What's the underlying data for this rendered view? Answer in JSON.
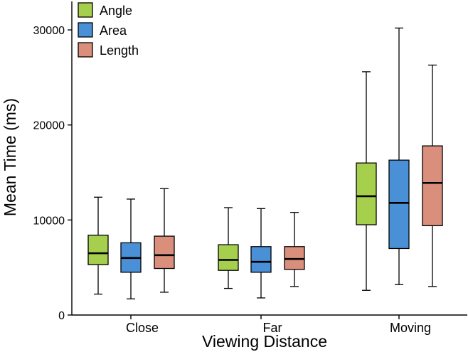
{
  "chart_data": {
    "type": "boxplot",
    "title": "",
    "xlabel": "Viewing Distance",
    "ylabel": "Mean Time (ms)",
    "ylim": [
      0,
      33000
    ],
    "yticks": [
      0,
      10000,
      20000,
      30000
    ],
    "ytick_labels": [
      "0",
      "10000",
      "20000",
      "30000"
    ],
    "categories": [
      "Close",
      "Far",
      "Moving"
    ],
    "legend_position": "top-left",
    "series": [
      {
        "name": "Angle",
        "color": "#a5cf4c",
        "boxes": [
          {
            "whisker_low": 2200,
            "q1": 5300,
            "median": 6500,
            "q3": 8400,
            "whisker_high": 12400
          },
          {
            "whisker_low": 2800,
            "q1": 4700,
            "median": 5800,
            "q3": 7400,
            "whisker_high": 11300
          },
          {
            "whisker_low": 2600,
            "q1": 9500,
            "median": 12500,
            "q3": 16000,
            "whisker_high": 25600
          }
        ]
      },
      {
        "name": "Area",
        "color": "#4a90d6",
        "boxes": [
          {
            "whisker_low": 1700,
            "q1": 4500,
            "median": 6000,
            "q3": 7600,
            "whisker_high": 12200
          },
          {
            "whisker_low": 1800,
            "q1": 4500,
            "median": 5600,
            "q3": 7200,
            "whisker_high": 11200
          },
          {
            "whisker_low": 3200,
            "q1": 7000,
            "median": 11800,
            "q3": 16300,
            "whisker_high": 30200
          }
        ]
      },
      {
        "name": "Length",
        "color": "#d98f7c",
        "boxes": [
          {
            "whisker_low": 2400,
            "q1": 4900,
            "median": 6300,
            "q3": 8300,
            "whisker_high": 13300
          },
          {
            "whisker_low": 3000,
            "q1": 4800,
            "median": 5900,
            "q3": 7200,
            "whisker_high": 10800
          },
          {
            "whisker_low": 3000,
            "q1": 9400,
            "median": 13900,
            "q3": 17800,
            "whisker_high": 26300
          }
        ]
      }
    ]
  }
}
